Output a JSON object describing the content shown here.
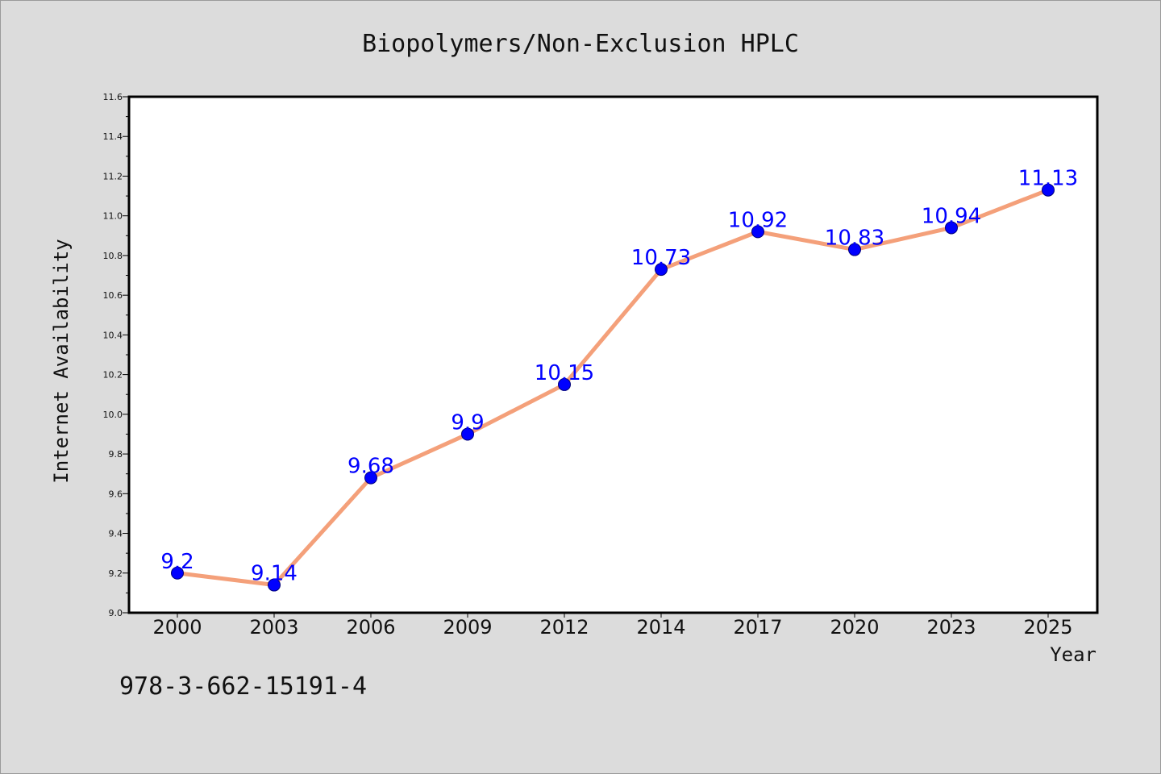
{
  "chart_data": {
    "type": "line",
    "title": "Biopolymers/Non-Exclusion HPLC",
    "xlabel": "Year",
    "ylabel": "Internet Availability",
    "categories": [
      "2000",
      "2003",
      "2006",
      "2009",
      "2012",
      "2014",
      "2017",
      "2020",
      "2023",
      "2025"
    ],
    "series": [
      {
        "values": [
          9.2,
          9.14,
          9.68,
          9.9,
          10.15,
          10.73,
          10.92,
          10.83,
          10.94,
          11.13
        ]
      }
    ],
    "data_labels": [
      "9.2",
      "9.14",
      "9.68",
      "9.9",
      "10.15",
      "10.73",
      "10.92",
      "10.83",
      "10.94",
      "11.13"
    ],
    "ylim": [
      9.0,
      11.6
    ],
    "yticks": [
      "9.0",
      "9.2",
      "9.4",
      "9.6",
      "9.8",
      "10.0",
      "10.2",
      "10.4",
      "10.6",
      "10.8",
      "11.0",
      "11.2",
      "11.4",
      "11.6"
    ],
    "grid": false,
    "colors": {
      "line": "#f4a07a",
      "marker": "#0000ff",
      "label": "#0000ff",
      "plot_bg": "#ffffff",
      "page_bg": "#dcdcdc"
    }
  },
  "footer": {
    "isbn": "978-3-662-15191-4"
  }
}
